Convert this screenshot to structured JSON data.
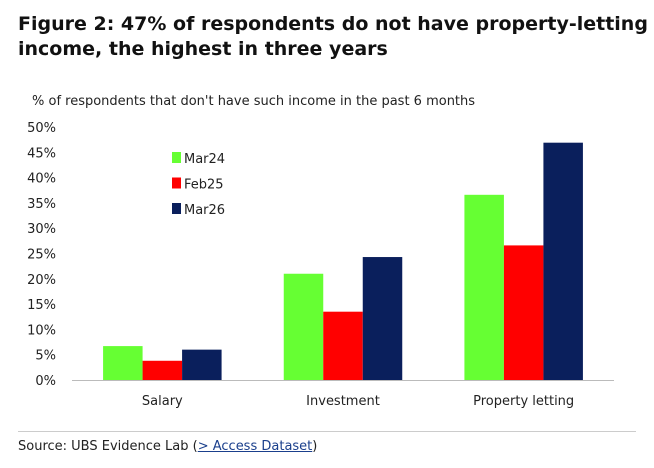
{
  "title": "Figure 2: 47% of respondents do not have property-letting income, the highest in three years",
  "subtitle": "% of respondents that don't have such income in the past 6 months",
  "source_prefix": "Source: UBS Evidence Lab (",
  "source_link": "> Access Dataset",
  "source_suffix": ")",
  "chart_data": {
    "type": "bar",
    "categories": [
      "Salary",
      "Investment",
      "Property letting"
    ],
    "series": [
      {
        "name": "Mar24",
        "color": "#66ff33",
        "values": [
          6.7,
          21.0,
          36.6
        ]
      },
      {
        "name": "Feb25",
        "color": "#ff0000",
        "values": [
          3.8,
          13.5,
          26.6
        ]
      },
      {
        "name": "Mar26",
        "color": "#0a1f5c",
        "values": [
          6.0,
          24.3,
          46.9
        ]
      }
    ],
    "ylim": [
      0,
      50
    ],
    "yticks": [
      "0%",
      "5%",
      "10%",
      "15%",
      "20%",
      "25%",
      "30%",
      "35%",
      "40%",
      "45%",
      "50%"
    ],
    "grid": false,
    "legend": "upper-left inside plot"
  }
}
